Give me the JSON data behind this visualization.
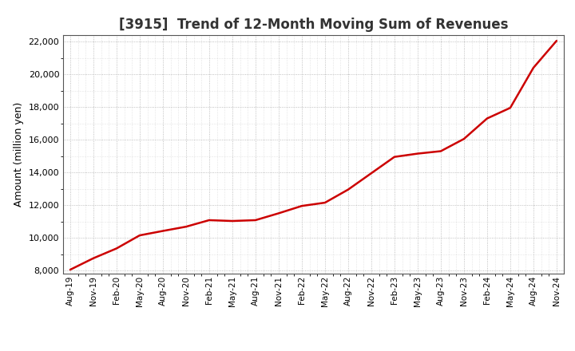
{
  "title": "[3915]  Trend of 12-Month Moving Sum of Revenues",
  "ylabel": "Amount (million yen)",
  "line_color": "#cc0000",
  "line_width": 1.8,
  "background_color": "#ffffff",
  "plot_bg_color": "#ffffff",
  "grid_color": "#999999",
  "ylim": [
    7800,
    22400
  ],
  "yticks": [
    8000,
    10000,
    12000,
    14000,
    16000,
    18000,
    20000,
    22000
  ],
  "x_labels": [
    "Aug-19",
    "Nov-19",
    "Feb-20",
    "May-20",
    "Aug-20",
    "Nov-20",
    "Feb-21",
    "May-21",
    "Aug-21",
    "Nov-21",
    "Feb-22",
    "May-22",
    "Aug-22",
    "Nov-22",
    "Feb-23",
    "May-23",
    "Aug-23",
    "Nov-23",
    "Feb-24",
    "May-24",
    "Aug-24",
    "Nov-24"
  ],
  "values": [
    8050,
    8750,
    9350,
    10150,
    10420,
    10680,
    11080,
    11030,
    11080,
    11500,
    11950,
    12150,
    12950,
    13950,
    14950,
    15150,
    15300,
    16050,
    17300,
    17950,
    20400,
    22050
  ],
  "title_fontsize": 12,
  "title_fontweight": "bold",
  "title_color": "#333333",
  "ylabel_fontsize": 9,
  "tick_labelsize": 8,
  "xtick_labelsize": 7.5
}
